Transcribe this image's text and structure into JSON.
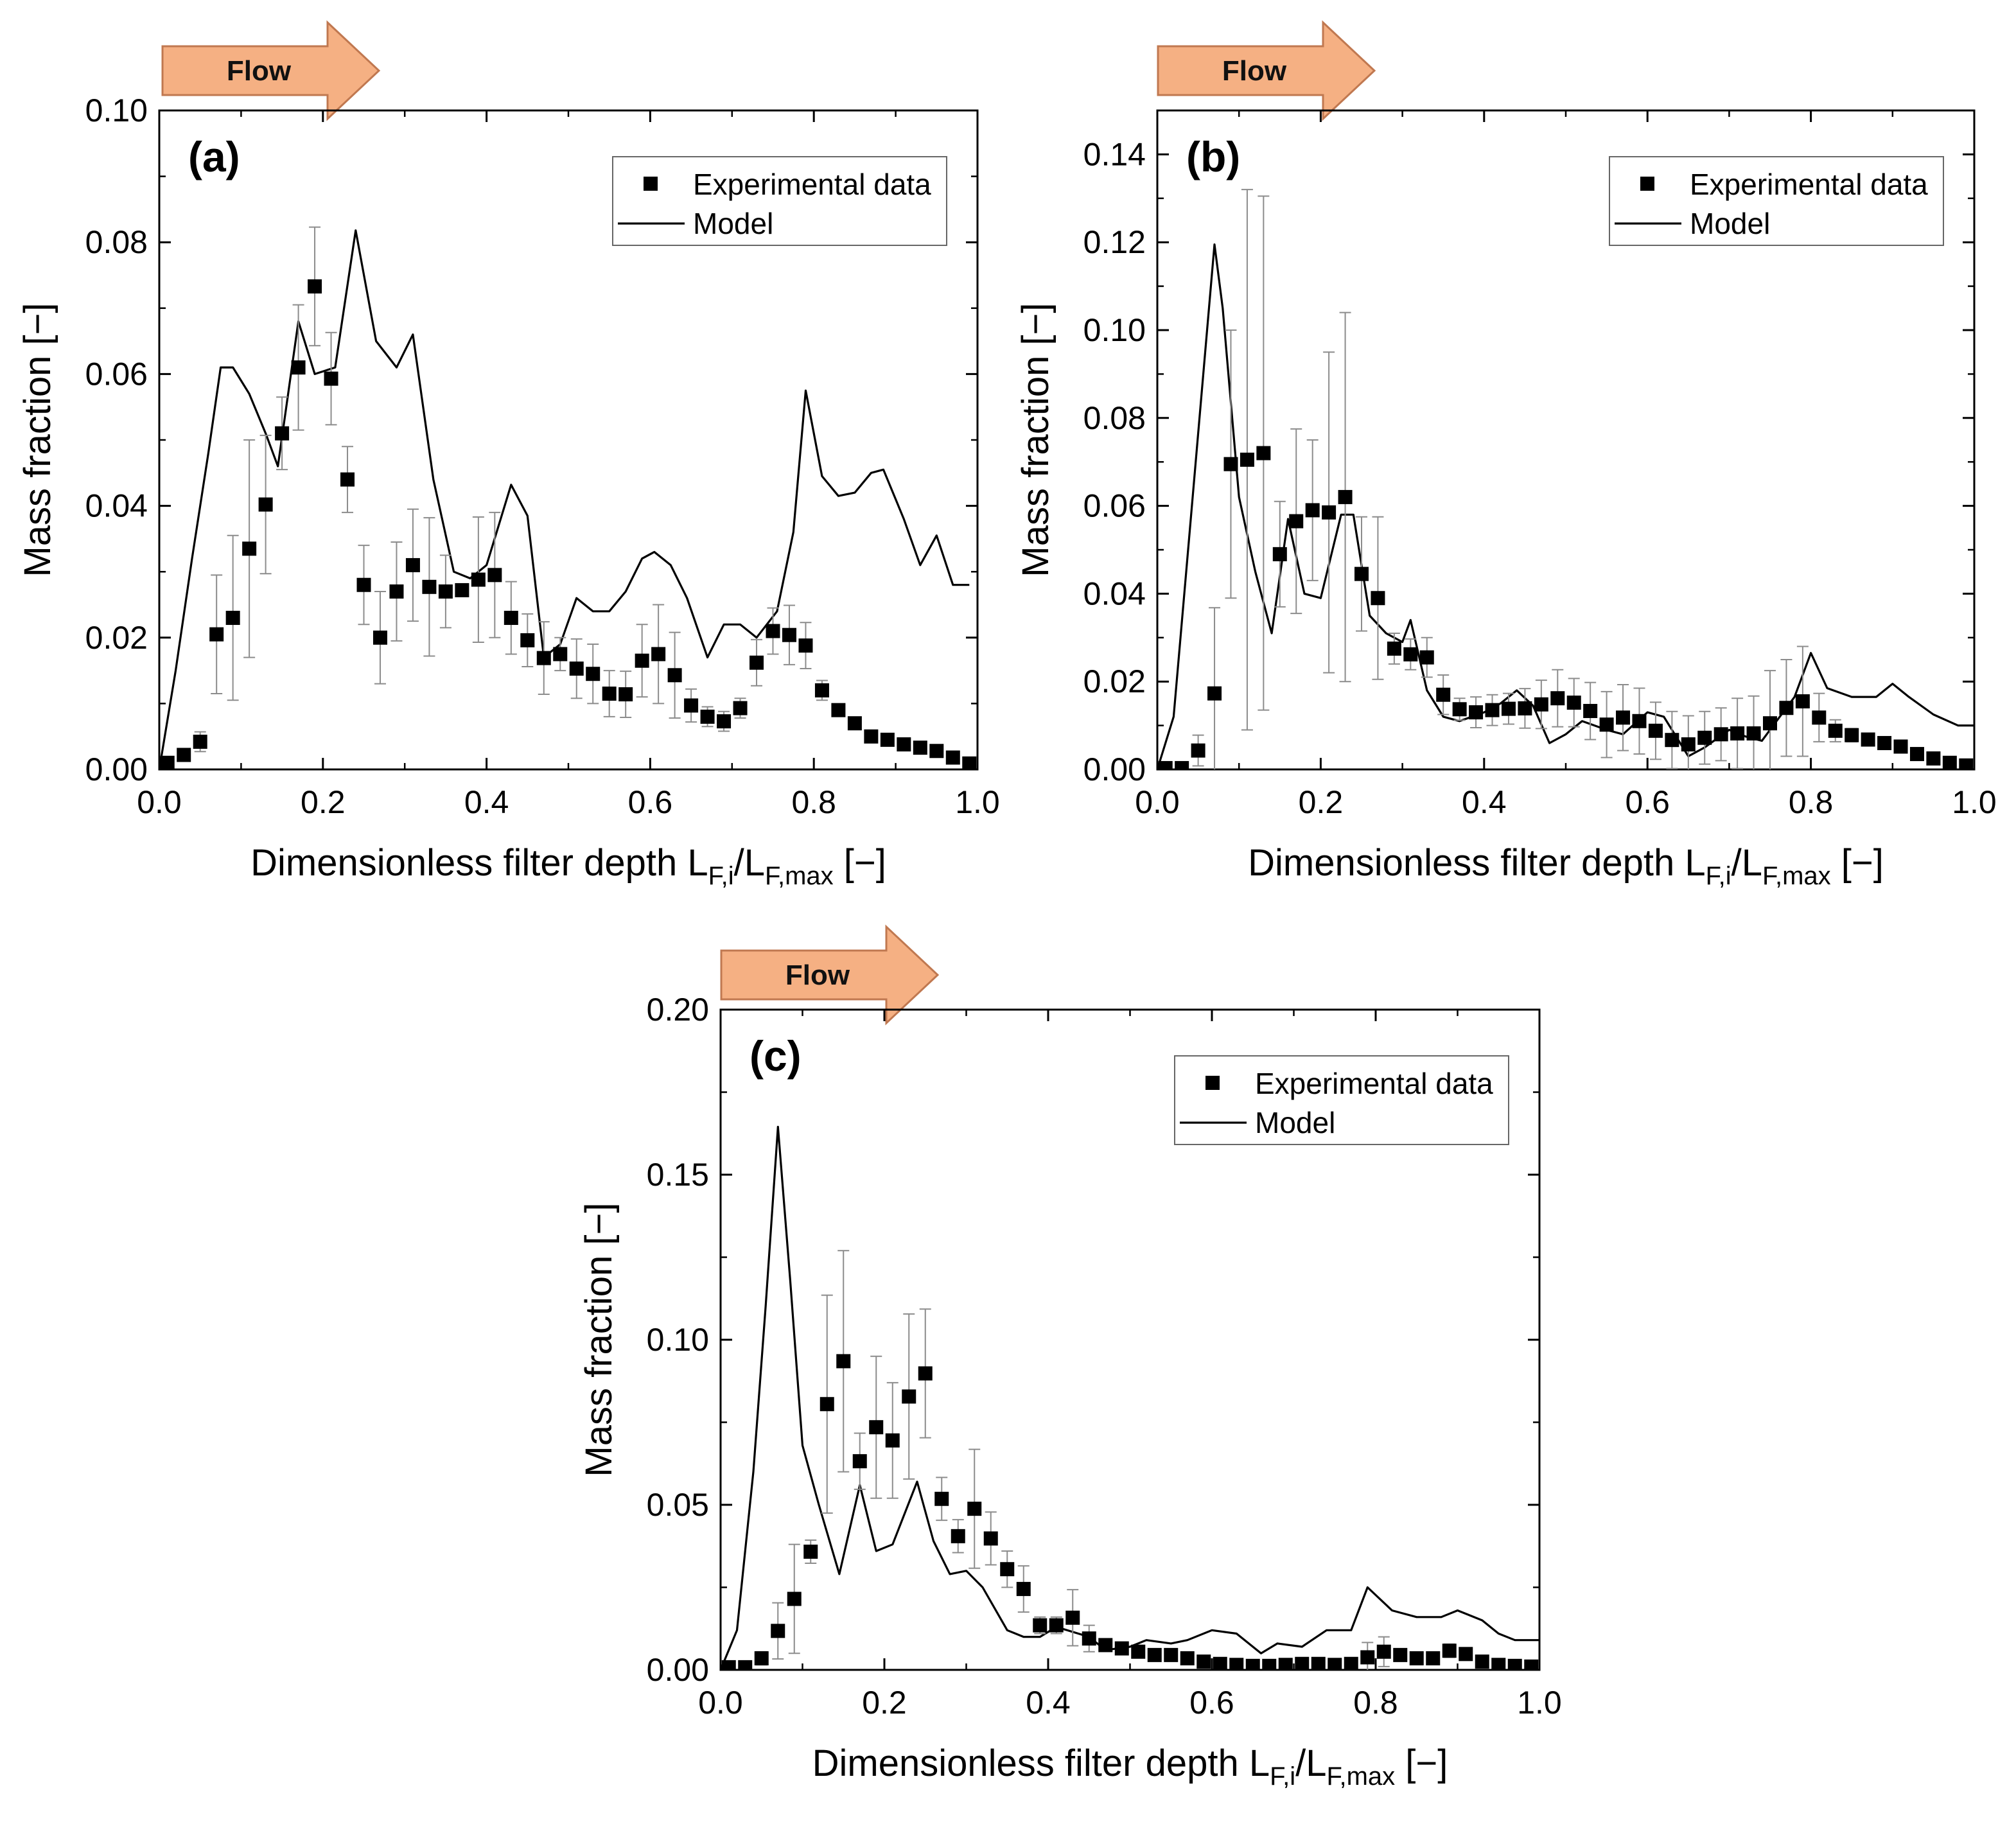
{
  "flow_label": "Flow",
  "legend": {
    "experimental": "Experimental data",
    "model": "Model"
  },
  "axis_labels": {
    "x_main": "Dimensionless filter depth L",
    "x_sub1": "F,i",
    "x_slash": "/L",
    "x_sub2": "F,max",
    "x_unit": " [−]",
    "y": "Mass fraction [−]"
  },
  "colors": {
    "arrow_fill": "#f5b083",
    "arrow_stroke": "#c07850",
    "marker": "#000000",
    "line": "#000000",
    "errorbar": "#8c8c8c"
  },
  "chart_data": [
    {
      "panel": "(a)",
      "type": "scatter",
      "xlim": [
        0,
        1.0
      ],
      "ylim": [
        0,
        0.1
      ],
      "xticks": [
        "0.0",
        "0.2",
        "0.4",
        "0.6",
        "0.8",
        "1.0"
      ],
      "yticks": [
        "0.00",
        "0.02",
        "0.04",
        "0.06",
        "0.08",
        "0.10"
      ],
      "xtick_values": [
        0,
        0.2,
        0.4,
        0.6,
        0.8,
        1.0
      ],
      "ytick_values": [
        0,
        0.02,
        0.04,
        0.06,
        0.08,
        0.1
      ],
      "legend_position": "top-right",
      "series": [
        {
          "name": "Experimental data",
          "kind": "markers",
          "x": [
            0.01,
            0.03,
            0.05,
            0.07,
            0.09,
            0.11,
            0.13,
            0.15,
            0.17,
            0.19,
            0.21,
            0.23,
            0.25,
            0.27,
            0.29,
            0.31,
            0.33,
            0.35,
            0.37,
            0.39,
            0.41,
            0.43,
            0.45,
            0.47,
            0.49,
            0.51,
            0.53,
            0.55,
            0.57,
            0.59,
            0.61,
            0.63,
            0.65,
            0.67,
            0.69,
            0.71,
            0.73,
            0.75,
            0.77,
            0.79,
            0.81,
            0.83,
            0.85,
            0.87,
            0.89,
            0.91,
            0.93,
            0.95,
            0.97,
            0.99
          ],
          "y": [
            0.001,
            0.0022,
            0.0042,
            0.0205,
            0.023,
            0.0335,
            0.0402,
            0.051,
            0.061,
            0.0733,
            0.0593,
            0.044,
            0.028,
            0.02,
            0.027,
            0.031,
            0.0277,
            0.027,
            0.0272,
            0.0288,
            0.0295,
            0.023,
            0.0196,
            0.0169,
            0.0175,
            0.0153,
            0.0145,
            0.0115,
            0.0114,
            0.0165,
            0.0175,
            0.0143,
            0.0097,
            0.008,
            0.0073,
            0.0093,
            0.0162,
            0.021,
            0.0204,
            0.0188,
            0.012,
            0.009,
            0.007,
            0.005,
            0.0045,
            0.0038,
            0.0033,
            0.0028,
            0.0018,
            0.0009
          ],
          "err": [
            0.0005,
            0.0008,
            0.0015,
            0.009,
            0.0125,
            0.0165,
            0.0105,
            0.0055,
            0.0095,
            0.009,
            0.007,
            0.005,
            0.006,
            0.007,
            0.0075,
            0.0085,
            0.0105,
            0.0055,
            0.0008,
            0.0095,
            0.0095,
            0.0055,
            0.004,
            0.0055,
            0.0025,
            0.0045,
            0.0045,
            0.0035,
            0.0035,
            0.0055,
            0.0075,
            0.0065,
            0.0025,
            0.0015,
            0.0015,
            0.0015,
            0.0035,
            0.0035,
            0.0045,
            0.0035,
            0.0015,
            0.0008,
            0.0008,
            0.0005,
            0.0005,
            0.0005,
            0.0005,
            0.0008,
            0.0005,
            0.0004
          ]
        },
        {
          "name": "Model",
          "kind": "line",
          "x": [
            0.0,
            0.02,
            0.04,
            0.06,
            0.075,
            0.09,
            0.11,
            0.13,
            0.145,
            0.17,
            0.19,
            0.215,
            0.24,
            0.265,
            0.29,
            0.31,
            0.335,
            0.36,
            0.38,
            0.4,
            0.43,
            0.45,
            0.47,
            0.49,
            0.51,
            0.53,
            0.55,
            0.57,
            0.59,
            0.605,
            0.625,
            0.645,
            0.67,
            0.69,
            0.71,
            0.73,
            0.755,
            0.775,
            0.79,
            0.81,
            0.83,
            0.85,
            0.87,
            0.885,
            0.91,
            0.93,
            0.95,
            0.97,
            0.99
          ],
          "y": [
            0.0,
            0.015,
            0.032,
            0.048,
            0.061,
            0.061,
            0.057,
            0.051,
            0.046,
            0.068,
            0.06,
            0.061,
            0.0818,
            0.065,
            0.061,
            0.066,
            0.044,
            0.03,
            0.029,
            0.031,
            0.0432,
            0.0385,
            0.017,
            0.019,
            0.026,
            0.024,
            0.024,
            0.027,
            0.032,
            0.033,
            0.031,
            0.026,
            0.017,
            0.022,
            0.022,
            0.02,
            0.024,
            0.036,
            0.0575,
            0.0445,
            0.0415,
            0.042,
            0.045,
            0.0455,
            0.038,
            0.031,
            0.0355,
            0.028,
            0.028
          ]
        }
      ]
    },
    {
      "panel": "(b)",
      "type": "scatter",
      "xlim": [
        0,
        1.0
      ],
      "ylim": [
        0,
        0.15
      ],
      "xticks": [
        "0.0",
        "0.2",
        "0.4",
        "0.6",
        "0.8",
        "1.0"
      ],
      "yticks": [
        "0.00",
        "0.02",
        "0.04",
        "0.06",
        "0.08",
        "0.10",
        "0.12",
        "0.14"
      ],
      "xtick_values": [
        0,
        0.2,
        0.4,
        0.6,
        0.8,
        1.0
      ],
      "ytick_values": [
        0,
        0.02,
        0.04,
        0.06,
        0.08,
        0.1,
        0.12,
        0.14
      ],
      "legend_position": "top-right",
      "series": [
        {
          "name": "Experimental data",
          "kind": "markers",
          "x": [
            0.01,
            0.03,
            0.05,
            0.07,
            0.09,
            0.11,
            0.13,
            0.15,
            0.17,
            0.19,
            0.21,
            0.23,
            0.25,
            0.27,
            0.29,
            0.31,
            0.33,
            0.35,
            0.37,
            0.39,
            0.41,
            0.43,
            0.45,
            0.47,
            0.49,
            0.51,
            0.53,
            0.55,
            0.57,
            0.59,
            0.61,
            0.63,
            0.65,
            0.67,
            0.69,
            0.71,
            0.73,
            0.75,
            0.77,
            0.79,
            0.81,
            0.83,
            0.85,
            0.87,
            0.89,
            0.91,
            0.93,
            0.95,
            0.97,
            0.99
          ],
          "y": [
            0.0003,
            0.0003,
            0.0043,
            0.0173,
            0.0695,
            0.0705,
            0.072,
            0.049,
            0.0565,
            0.059,
            0.0585,
            0.062,
            0.0445,
            0.039,
            0.0275,
            0.0262,
            0.0255,
            0.017,
            0.0137,
            0.013,
            0.0135,
            0.0138,
            0.0139,
            0.0148,
            0.0162,
            0.0152,
            0.0133,
            0.0102,
            0.0118,
            0.011,
            0.0088,
            0.0067,
            0.0057,
            0.0072,
            0.008,
            0.0082,
            0.0082,
            0.0105,
            0.014,
            0.0155,
            0.0118,
            0.0088,
            0.0078,
            0.0068,
            0.006,
            0.0052,
            0.0035,
            0.0025,
            0.0015,
            0.0009
          ],
          "err": [
            0.0003,
            0.0004,
            0.0035,
            0.0195,
            0.0305,
            0.0615,
            0.0585,
            0.012,
            0.021,
            0.016,
            0.0365,
            0.042,
            0.013,
            0.0185,
            0.0035,
            0.0035,
            0.0045,
            0.0045,
            0.0025,
            0.0035,
            0.0035,
            0.0035,
            0.0045,
            0.0055,
            0.0065,
            0.0055,
            0.0065,
            0.0075,
            0.0075,
            0.0075,
            0.0065,
            0.0065,
            0.0065,
            0.006,
            0.006,
            0.008,
            0.0085,
            0.012,
            0.011,
            0.0125,
            0.0055,
            0.0025,
            0.0015,
            0.001,
            0.001,
            0.0008,
            0.0008,
            0.0005,
            0.0005,
            0.0004
          ]
        },
        {
          "name": "Model",
          "kind": "line",
          "x": [
            0.0,
            0.02,
            0.04,
            0.06,
            0.07,
            0.08,
            0.1,
            0.12,
            0.14,
            0.16,
            0.18,
            0.2,
            0.225,
            0.24,
            0.26,
            0.28,
            0.3,
            0.31,
            0.33,
            0.35,
            0.37,
            0.4,
            0.42,
            0.44,
            0.46,
            0.48,
            0.5,
            0.52,
            0.55,
            0.57,
            0.6,
            0.62,
            0.65,
            0.67,
            0.7,
            0.72,
            0.74,
            0.76,
            0.78,
            0.8,
            0.82,
            0.85,
            0.88,
            0.9,
            0.92,
            0.95,
            0.98,
            1.0
          ],
          "y": [
            0.0,
            0.012,
            0.055,
            0.098,
            0.1195,
            0.105,
            0.062,
            0.045,
            0.031,
            0.057,
            0.04,
            0.039,
            0.058,
            0.058,
            0.035,
            0.031,
            0.029,
            0.034,
            0.018,
            0.012,
            0.011,
            0.013,
            0.015,
            0.018,
            0.0145,
            0.006,
            0.008,
            0.011,
            0.009,
            0.008,
            0.013,
            0.012,
            0.003,
            0.005,
            0.009,
            0.0075,
            0.0065,
            0.0115,
            0.0165,
            0.0265,
            0.0185,
            0.0165,
            0.0165,
            0.0195,
            0.0165,
            0.0125,
            0.01,
            0.01
          ]
        }
      ]
    },
    {
      "panel": "(c)",
      "type": "scatter",
      "xlim": [
        0,
        1.0
      ],
      "ylim": [
        0,
        0.2
      ],
      "xticks": [
        "0.0",
        "0.2",
        "0.4",
        "0.6",
        "0.8",
        "1.0"
      ],
      "yticks": [
        "0.00",
        "0.05",
        "0.10",
        "0.15",
        "0.20"
      ],
      "xtick_values": [
        0,
        0.2,
        0.4,
        0.6,
        0.8,
        1.0
      ],
      "ytick_values": [
        0,
        0.05,
        0.1,
        0.15,
        0.2
      ],
      "legend_position": "top-right",
      "series": [
        {
          "name": "Experimental data",
          "kind": "markers",
          "x": [
            0.01,
            0.03,
            0.05,
            0.07,
            0.09,
            0.11,
            0.13,
            0.15,
            0.17,
            0.19,
            0.21,
            0.23,
            0.25,
            0.27,
            0.29,
            0.31,
            0.33,
            0.35,
            0.37,
            0.39,
            0.41,
            0.43,
            0.45,
            0.47,
            0.49,
            0.51,
            0.53,
            0.55,
            0.57,
            0.59,
            0.61,
            0.63,
            0.65,
            0.67,
            0.69,
            0.71,
            0.73,
            0.75,
            0.77,
            0.79,
            0.81,
            0.83,
            0.85,
            0.87,
            0.89,
            0.91,
            0.93,
            0.95,
            0.97,
            0.99
          ],
          "y": [
            0.0008,
            0.0008,
            0.0035,
            0.0118,
            0.0215,
            0.0358,
            0.0805,
            0.0935,
            0.0632,
            0.0735,
            0.0695,
            0.0828,
            0.0898,
            0.0518,
            0.0405,
            0.0488,
            0.0398,
            0.0305,
            0.0245,
            0.0135,
            0.0135,
            0.0158,
            0.0095,
            0.0075,
            0.0065,
            0.0055,
            0.0045,
            0.0045,
            0.0035,
            0.0025,
            0.0018,
            0.0015,
            0.0012,
            0.0012,
            0.0015,
            0.0018,
            0.0018,
            0.0015,
            0.0018,
            0.0038,
            0.0055,
            0.0045,
            0.0035,
            0.0035,
            0.0058,
            0.0048,
            0.0025,
            0.0015,
            0.0012,
            0.001
          ],
          "err": [
            0.0003,
            0.0004,
            0.002,
            0.0085,
            0.0165,
            0.0035,
            0.033,
            0.0335,
            0.0085,
            0.0215,
            0.0175,
            0.025,
            0.0195,
            0.0065,
            0.005,
            0.018,
            0.008,
            0.0055,
            0.007,
            0.0025,
            0.0025,
            0.0085,
            0.004,
            0.0015,
            0.001,
            0.001,
            0.001,
            0.001,
            0.0008,
            0.0006,
            0.0005,
            0.0004,
            0.0004,
            0.0004,
            0.0005,
            0.0005,
            0.0006,
            0.0006,
            0.001,
            0.0045,
            0.0045,
            0.0015,
            0.001,
            0.001,
            0.002,
            0.0015,
            0.0008,
            0.0006,
            0.0005,
            0.0004
          ]
        },
        {
          "name": "Model",
          "kind": "line",
          "x": [
            0.0,
            0.02,
            0.04,
            0.055,
            0.07,
            0.085,
            0.1,
            0.12,
            0.145,
            0.17,
            0.19,
            0.21,
            0.24,
            0.26,
            0.28,
            0.3,
            0.32,
            0.35,
            0.37,
            0.39,
            0.41,
            0.45,
            0.47,
            0.5,
            0.52,
            0.55,
            0.57,
            0.6,
            0.63,
            0.66,
            0.68,
            0.71,
            0.74,
            0.77,
            0.79,
            0.82,
            0.85,
            0.88,
            0.9,
            0.93,
            0.95,
            0.97,
            1.0
          ],
          "y": [
            0.0,
            0.012,
            0.06,
            0.11,
            0.1645,
            0.118,
            0.068,
            0.05,
            0.029,
            0.056,
            0.036,
            0.038,
            0.057,
            0.039,
            0.029,
            0.03,
            0.025,
            0.012,
            0.01,
            0.01,
            0.013,
            0.01,
            0.006,
            0.007,
            0.009,
            0.008,
            0.009,
            0.012,
            0.011,
            0.005,
            0.008,
            0.007,
            0.012,
            0.012,
            0.025,
            0.018,
            0.016,
            0.016,
            0.018,
            0.015,
            0.011,
            0.009,
            0.009
          ]
        }
      ]
    }
  ]
}
